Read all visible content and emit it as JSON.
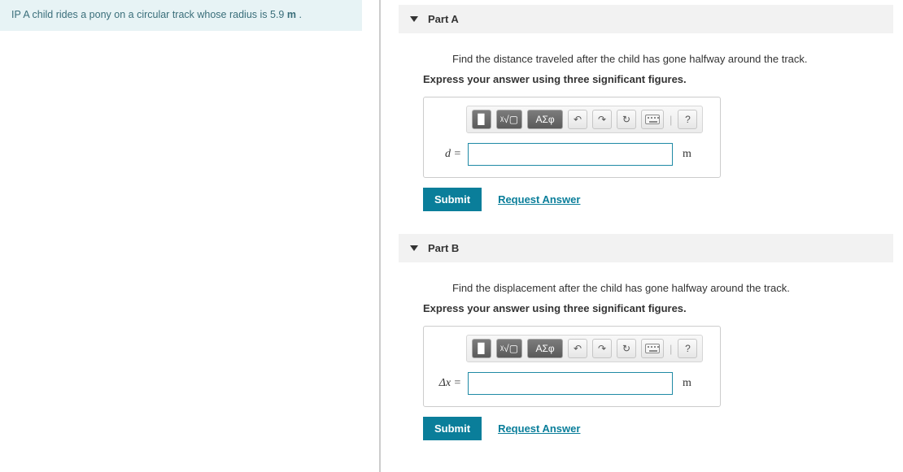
{
  "problem": {
    "prefix": "IP",
    "text": "A child rides a pony on a circular track whose radius is 5.9",
    "unit": "m",
    "trail": "."
  },
  "parts": [
    {
      "title": "Part A",
      "prompt": "Find the distance traveled after the child has gone halfway around the track.",
      "instruction": "Express your answer using three significant figures.",
      "lhs": "d =",
      "unit": "m",
      "value": "",
      "submit_label": "Submit",
      "request_label": "Request Answer",
      "tools": {
        "template": "▉",
        "radical": "ᵡ√▢",
        "greek": "ΑΣφ",
        "undo": "↶",
        "redo": "↷",
        "reset": "↻",
        "help": "?"
      }
    },
    {
      "title": "Part B",
      "prompt": "Find the displacement after the child has gone halfway around the track.",
      "instruction": "Express your answer using three significant figures.",
      "lhs": "Δx =",
      "unit": "m",
      "value": "",
      "submit_label": "Submit",
      "request_label": "Request Answer",
      "tools": {
        "template": "▉",
        "radical": "ᵡ√▢",
        "greek": "ΑΣφ",
        "undo": "↶",
        "redo": "↷",
        "reset": "↻",
        "help": "?"
      }
    }
  ],
  "colors": {
    "problem_bg": "#e7f3f5",
    "problem_text": "#3a6e7a",
    "part_header_bg": "#f2f2f2",
    "accent": "#0a7e9a",
    "input_border": "#1f8aa5",
    "divider": "#ccc"
  }
}
